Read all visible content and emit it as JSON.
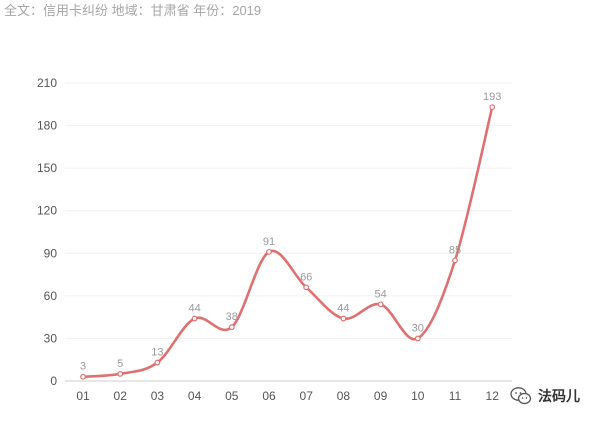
{
  "header": {
    "subtitle": "全文：信用卡纠纷  地域：甘肃省  年份：2019"
  },
  "watermark": {
    "label": "法码儿",
    "icon": "wechat-icon"
  },
  "colors": {
    "line": "#e07070",
    "point_fill": "#ffffff",
    "grid": "#f1f1f1",
    "tick_text": "#555555",
    "data_label": "#9a9a9a"
  },
  "chart_data": {
    "type": "line",
    "smooth": true,
    "categories": [
      "01",
      "02",
      "03",
      "04",
      "05",
      "06",
      "07",
      "08",
      "09",
      "10",
      "11",
      "12"
    ],
    "values": [
      3,
      5,
      13,
      44,
      38,
      91,
      66,
      44,
      54,
      30,
      85,
      193
    ],
    "ylim": [
      0,
      210
    ],
    "yticks": [
      0,
      30,
      60,
      90,
      120,
      150,
      180,
      210
    ],
    "grid": true,
    "legend": "none"
  }
}
